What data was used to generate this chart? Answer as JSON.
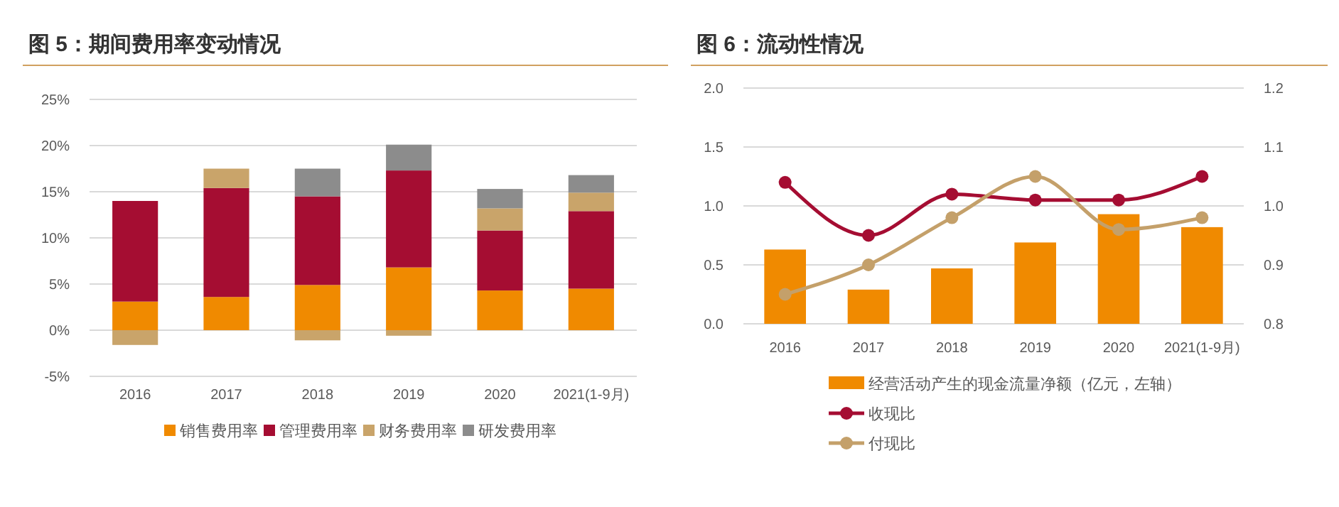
{
  "chart_data": [
    {
      "type": "bar",
      "title": "图 5：期间费用率变动情况",
      "categories": [
        "2016",
        "2017",
        "2018",
        "2019",
        "2020",
        "2021(1-9月)"
      ],
      "stacked": true,
      "ylim": [
        -5,
        25
      ],
      "yticks": [
        {
          "value": -5,
          "label": "-5%"
        },
        {
          "value": 0,
          "label": "0%"
        },
        {
          "value": 5,
          "label": "5%"
        },
        {
          "value": 10,
          "label": "10%"
        },
        {
          "value": 15,
          "label": "15%"
        },
        {
          "value": 20,
          "label": "20%"
        },
        {
          "value": 25,
          "label": "25%"
        }
      ],
      "grid": "y",
      "legend": "bottom",
      "series": [
        {
          "name": "销售费用率",
          "color": "#f08a00",
          "values": [
            3.1,
            3.6,
            4.9,
            6.8,
            4.3,
            4.5
          ]
        },
        {
          "name": "管理费用率",
          "color": "#a50d32",
          "values": [
            10.9,
            11.8,
            9.6,
            10.5,
            6.5,
            8.4
          ]
        },
        {
          "name": "财务费用率",
          "color": "#c9a46a",
          "values": [
            -1.6,
            2.1,
            -1.1,
            -0.6,
            2.4,
            2.0
          ]
        },
        {
          "name": "研发费用率",
          "color": "#8c8c8c",
          "values": [
            null,
            null,
            3.0,
            2.8,
            2.1,
            1.9
          ]
        }
      ]
    },
    {
      "type": "bar",
      "title": "图 6：流动性情况",
      "categories": [
        "2016",
        "2017",
        "2018",
        "2019",
        "2020",
        "2021(1-9月)"
      ],
      "ylim": [
        0,
        2
      ],
      "yticks": [
        {
          "value": 0,
          "label": "0.0"
        },
        {
          "value": 0.5,
          "label": "0.5"
        },
        {
          "value": 1,
          "label": "1.0"
        },
        {
          "value": 1.5,
          "label": "1.5"
        },
        {
          "value": 2,
          "label": "2.0"
        }
      ],
      "y2lim": [
        0.8,
        1.2
      ],
      "y2ticks": [
        {
          "value": 0.8,
          "label": "0.8"
        },
        {
          "value": 0.9,
          "label": "0.9"
        },
        {
          "value": 1,
          "label": "1.0"
        },
        {
          "value": 1.1,
          "label": "1.1"
        },
        {
          "value": 1.2,
          "label": "1.2"
        }
      ],
      "grid": "y",
      "legend": "bottom",
      "marker": "circle",
      "series": [
        {
          "name": "经营活动产生的现金流量净额（亿元，左轴）",
          "color": "#f08a00",
          "values": [
            0.63,
            0.29,
            0.47,
            0.69,
            0.93,
            0.82
          ]
        },
        {
          "name": "收现比",
          "type": "line",
          "axis": "y2",
          "color": "#a50d32",
          "values": [
            1.04,
            0.95,
            1.02,
            1.01,
            1.01,
            1.05
          ]
        },
        {
          "name": "付现比",
          "type": "line",
          "axis": "y2",
          "color": "#c4a06a",
          "values": [
            0.85,
            0.9,
            0.98,
            1.05,
            0.96,
            0.98
          ]
        }
      ]
    }
  ]
}
